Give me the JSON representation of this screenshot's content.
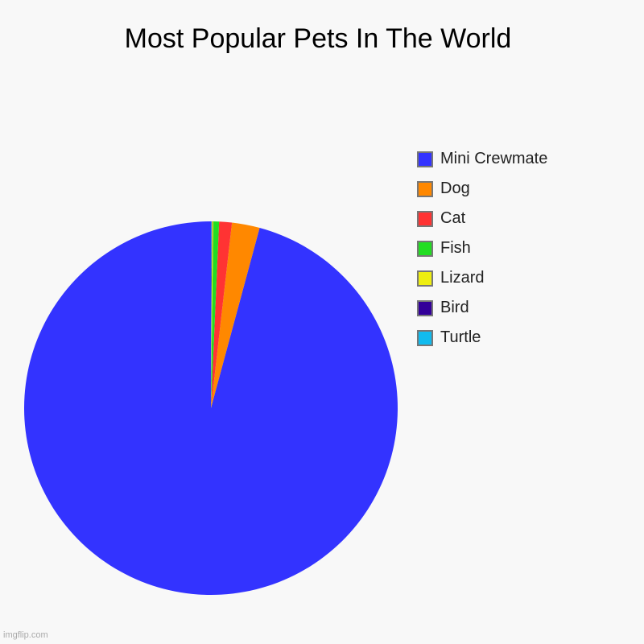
{
  "chart_data": {
    "type": "pie",
    "title": "Most Popular Pets In The World",
    "categories": [
      "Mini Crewmate",
      "Dog",
      "Cat",
      "Fish",
      "Lizard",
      "Bird",
      "Turtle"
    ],
    "values": [
      95.8,
      2.4,
      1.1,
      0.5,
      0.1,
      0.05,
      0.05
    ],
    "colors": [
      "#3333ff",
      "#ff8800",
      "#ff3333",
      "#22dd22",
      "#eeee11",
      "#330099",
      "#11bbee"
    ],
    "legend": "right",
    "start_angle": "12 o'clock",
    "direction": "counterclockwise"
  },
  "watermark": "imgflip.com"
}
